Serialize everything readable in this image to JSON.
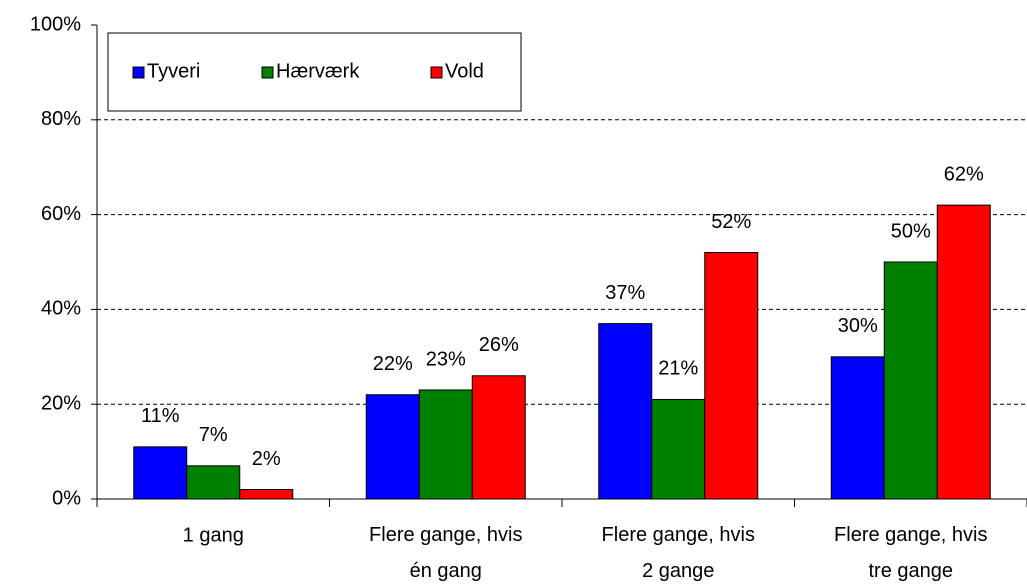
{
  "chart_data": {
    "type": "bar",
    "categories": [
      "1 gang",
      "Flere gange, hvis én gang",
      "Flere gange, hvis 2 gange",
      "Flere gange, hvis tre gange"
    ],
    "series": [
      {
        "name": "Tyveri",
        "color": "#0000ff",
        "values": [
          11,
          22,
          37,
          30
        ],
        "value_labels": [
          "11%",
          "22%",
          "37%",
          "30%"
        ]
      },
      {
        "name": "Hærværk",
        "color": "#008000",
        "values": [
          7,
          23,
          21,
          50
        ],
        "value_labels": [
          "7%",
          "23%",
          "21%",
          "50%"
        ]
      },
      {
        "name": "Vold",
        "color": "#ff0000",
        "values": [
          2,
          26,
          52,
          62
        ],
        "value_labels": [
          "2%",
          "26%",
          "52%",
          "62%"
        ]
      }
    ],
    "ylim": [
      0,
      100
    ],
    "yticks": [
      {
        "value": 0,
        "label": "0%"
      },
      {
        "value": 20,
        "label": "20%"
      },
      {
        "value": 40,
        "label": "40%"
      },
      {
        "value": 60,
        "label": "60%"
      },
      {
        "value": 80,
        "label": "80%"
      },
      {
        "value": 100,
        "label": "100%"
      }
    ],
    "grid": true,
    "legend": "top-left"
  }
}
